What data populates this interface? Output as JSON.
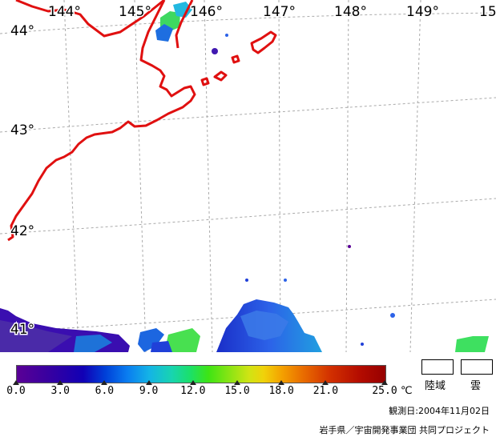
{
  "map": {
    "longitude_labels": [
      "144°",
      "145°",
      "146°",
      "147°",
      "148°",
      "149°",
      "15"
    ],
    "latitude_labels": [
      "44°",
      "43°",
      "42°",
      "41°"
    ],
    "colors": {
      "coastline": "#e01010",
      "grid": "#aaaaaa",
      "land": "#ffffff"
    }
  },
  "legend": {
    "scale_ticks": [
      "0.0",
      "3.0",
      "6.0",
      "9.0",
      "12.0",
      "15.0",
      "18.0",
      "21.0",
      "25.0"
    ],
    "scale_values": [
      0,
      3,
      6,
      9,
      12,
      15,
      18,
      21,
      25
    ],
    "unit": "℃",
    "land_label": "陸域",
    "cloud_label": "雲",
    "observation_date": "観測日:2004年11月02日",
    "credit": "岩手県／宇宙開発事業団 共同プロジェクト"
  }
}
